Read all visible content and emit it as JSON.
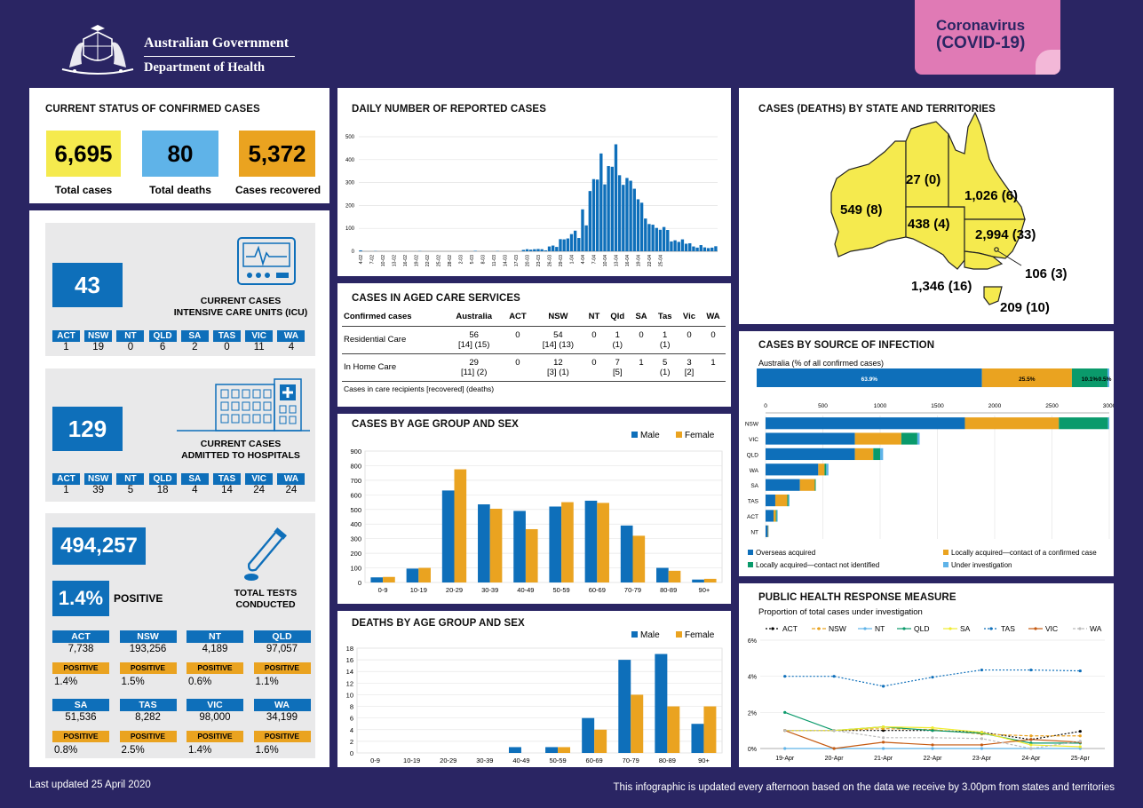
{
  "header": {
    "org_line1": "Australian Government",
    "org_line2": "Department of Health",
    "badge_line1": "Coronavirus",
    "badge_line2": "(COVID-19)"
  },
  "status": {
    "title": "CURRENT STATUS OF CONFIRMED CASES",
    "total_cases": "6,695",
    "total_cases_label": "Total cases",
    "total_deaths": "80",
    "total_deaths_label": "Total deaths",
    "recovered": "5,372",
    "recovered_label": "Cases recovered"
  },
  "icu": {
    "count": "43",
    "label_line1": "CURRENT CASES",
    "label_line2": "INTENSIVE CARE UNITS (ICU)",
    "states": [
      {
        "state": "ACT",
        "value": "1"
      },
      {
        "state": "NSW",
        "value": "19"
      },
      {
        "state": "NT",
        "value": "0"
      },
      {
        "state": "QLD",
        "value": "6"
      },
      {
        "state": "SA",
        "value": "2"
      },
      {
        "state": "TAS",
        "value": "0"
      },
      {
        "state": "VIC",
        "value": "11"
      },
      {
        "state": "WA",
        "value": "4"
      }
    ]
  },
  "hospital": {
    "count": "129",
    "label_line1": "CURRENT CASES",
    "label_line2": "ADMITTED TO HOSPITALS",
    "states": [
      {
        "state": "ACT",
        "value": "1"
      },
      {
        "state": "NSW",
        "value": "39"
      },
      {
        "state": "NT",
        "value": "5"
      },
      {
        "state": "QLD",
        "value": "18"
      },
      {
        "state": "SA",
        "value": "4"
      },
      {
        "state": "TAS",
        "value": "14"
      },
      {
        "state": "VIC",
        "value": "24"
      },
      {
        "state": "WA",
        "value": "24"
      }
    ]
  },
  "tests": {
    "total": "494,257",
    "positive_rate": "1.4%",
    "positive_label": "POSITIVE",
    "label_line1": "TOTAL TESTS",
    "label_line2": "CONDUCTED",
    "positive_chip": "POSITIVE",
    "states": [
      {
        "state": "ACT",
        "tests": "7,738",
        "positive": "1.4%"
      },
      {
        "state": "NSW",
        "tests": "193,256",
        "positive": "1.5%"
      },
      {
        "state": "NT",
        "tests": "4,189",
        "positive": "0.6%"
      },
      {
        "state": "QLD",
        "tests": "97,057",
        "positive": "1.1%"
      },
      {
        "state": "SA",
        "tests": "51,536",
        "positive": "0.8%"
      },
      {
        "state": "TAS",
        "tests": "8,282",
        "positive": "2.5%"
      },
      {
        "state": "VIC",
        "tests": "98,000",
        "positive": "1.4%"
      },
      {
        "state": "WA",
        "tests": "34,199",
        "positive": "1.6%"
      }
    ]
  },
  "aged_care": {
    "title": "CASES IN AGED CARE SERVICES",
    "headers": [
      "Confirmed cases",
      "Australia",
      "ACT",
      "NSW",
      "NT",
      "Qld",
      "SA",
      "Tas",
      "Vic",
      "WA"
    ],
    "rows": [
      {
        "label": "Residential Care",
        "cells": [
          [
            "56",
            "[14] (15)"
          ],
          [
            "0",
            ""
          ],
          [
            "54",
            "[14] (13)"
          ],
          [
            "0",
            ""
          ],
          [
            "1",
            "(1)"
          ],
          [
            "0",
            ""
          ],
          [
            "1",
            "(1)"
          ],
          [
            "0",
            ""
          ],
          [
            "0",
            ""
          ]
        ]
      },
      {
        "label": "In Home Care",
        "cells": [
          [
            "29",
            "[11] (2)"
          ],
          [
            "0",
            ""
          ],
          [
            "12",
            "[3] (1)"
          ],
          [
            "0",
            ""
          ],
          [
            "7",
            "[5]"
          ],
          [
            "1",
            ""
          ],
          [
            "5",
            "(1)"
          ],
          [
            "3",
            "[2]"
          ],
          [
            "1",
            ""
          ]
        ]
      }
    ],
    "note": "Cases in care recipients [recovered] (deaths)"
  },
  "map": {
    "title": "CASES (DEATHS) BY STATE AND TERRITORIES",
    "labels": {
      "WA": "549 (8)",
      "NT": "27 (0)",
      "QLD": "1,026 (6)",
      "SA": "438 (4)",
      "NSW": "2,994 (33)",
      "ACT": "106 (3)",
      "VIC": "1,346 (16)",
      "TAS": "209 (10)"
    },
    "fill": "#f5ea4e"
  },
  "chart_data": [
    {
      "id": "daily",
      "type": "bar",
      "title": "DAILY NUMBER OF REPORTED CASES",
      "ylim": [
        0,
        500
      ],
      "yticks": [
        0,
        100,
        200,
        300,
        400,
        500
      ],
      "color": "#0e6fba",
      "xtick_labels": [
        "4-02",
        "7-02",
        "10-02",
        "13-02",
        "16-02",
        "19-02",
        "22-02",
        "25-02",
        "28-02",
        "2-03",
        "5-03",
        "8-03",
        "11-03",
        "14-03",
        "17-03",
        "20-03",
        "23-03",
        "26-03",
        "29-03",
        "1-04",
        "4-04",
        "7-04",
        "10-04",
        "13-04",
        "16-04",
        "19-04",
        "22-04",
        "25-04"
      ],
      "values": [
        4,
        0,
        0,
        0,
        1,
        0,
        0,
        0,
        0,
        0,
        0,
        0,
        0,
        0,
        0,
        0,
        1,
        0,
        0,
        0,
        0,
        0,
        0,
        0,
        0,
        0,
        0,
        0,
        0,
        0,
        0,
        2,
        0,
        0,
        0,
        0,
        0,
        1,
        0,
        0,
        0,
        0,
        0,
        0,
        6,
        9,
        7,
        9,
        10,
        9,
        4,
        21,
        25,
        19,
        53,
        52,
        56,
        75,
        90,
        58,
        183,
        113,
        263,
        315,
        313,
        427,
        292,
        372,
        369,
        467,
        332,
        290,
        320,
        308,
        273,
        227,
        212,
        143,
        119,
        116,
        102,
        94,
        106,
        93,
        43,
        48,
        41,
        52,
        33,
        35,
        21,
        16,
        27,
        17,
        14,
        16,
        22
      ]
    },
    {
      "id": "age_cases",
      "type": "bar",
      "title": "CASES BY AGE GROUP AND SEX",
      "categories": [
        "0-9",
        "10-19",
        "20-29",
        "30-39",
        "40-49",
        "50-59",
        "60-69",
        "70-79",
        "80-89",
        "90+"
      ],
      "ylim": [
        0,
        900
      ],
      "yticks": [
        0,
        100,
        200,
        300,
        400,
        500,
        600,
        700,
        800,
        900
      ],
      "series": [
        {
          "name": "Male",
          "color": "#0e6fba",
          "values": [
            35,
            95,
            630,
            535,
            490,
            520,
            560,
            390,
            100,
            20
          ]
        },
        {
          "name": "Female",
          "color": "#eaa320",
          "values": [
            38,
            100,
            775,
            505,
            365,
            550,
            545,
            320,
            80,
            25
          ]
        }
      ],
      "legend": "top-right"
    },
    {
      "id": "age_deaths",
      "type": "bar",
      "title": "DEATHS BY AGE GROUP AND SEX",
      "categories": [
        "0-9",
        "10-19",
        "20-29",
        "30-39",
        "40-49",
        "50-59",
        "60-69",
        "70-79",
        "80-89",
        "90+"
      ],
      "ylim": [
        0,
        18
      ],
      "yticks": [
        0,
        2,
        4,
        6,
        8,
        10,
        12,
        14,
        16,
        18
      ],
      "series": [
        {
          "name": "Male",
          "color": "#0e6fba",
          "values": [
            0,
            0,
            0,
            0,
            1,
            1,
            6,
            16,
            17,
            5
          ]
        },
        {
          "name": "Female",
          "color": "#eaa320",
          "values": [
            0,
            0,
            0,
            0,
            0,
            1,
            4,
            10,
            8,
            8
          ]
        }
      ],
      "legend": "top-right"
    },
    {
      "id": "source",
      "type": "bar",
      "title": "CASES BY SOURCE OF INFECTION",
      "subtitle": "Australia (% of all confirmed cases)",
      "australia_shares": [
        {
          "label": "63.9%",
          "value": 63.9,
          "color": "#0e6fba"
        },
        {
          "label": "25.5%",
          "value": 25.5,
          "color": "#eaa320"
        },
        {
          "label": "10.1%",
          "value": 10.1,
          "color": "#0a9a6b"
        },
        {
          "label": "0.5%",
          "value": 0.5,
          "color": "#5fb3e8"
        }
      ],
      "xlim": [
        0,
        3000
      ],
      "xticks": [
        0,
        500,
        1000,
        1500,
        2000,
        2500,
        3000
      ],
      "categories": [
        "NSW",
        "VIC",
        "QLD",
        "WA",
        "SA",
        "TAS",
        "ACT",
        "NT"
      ],
      "series": [
        {
          "name": "Overseas acquired",
          "color": "#0e6fba",
          "values": [
            1740,
            780,
            780,
            460,
            300,
            85,
            70,
            20
          ]
        },
        {
          "name": "Locally acquired—contact of a confirmed case",
          "color": "#eaa320",
          "values": [
            820,
            405,
            160,
            55,
            130,
            105,
            20,
            5
          ]
        },
        {
          "name": "Locally acquired—contact not identified",
          "color": "#0a9a6b",
          "values": [
            430,
            140,
            60,
            15,
            8,
            10,
            8,
            1
          ]
        },
        {
          "name": "Under investigation",
          "color": "#5fb3e8",
          "values": [
            10,
            20,
            26,
            19,
            0,
            9,
            8,
            1
          ]
        }
      ]
    },
    {
      "id": "phrm",
      "type": "line",
      "title": "PUBLIC HEALTH RESPONSE MEASURE",
      "subtitle": "Proportion of total cases under investigation",
      "x": [
        "19-Apr",
        "20-Apr",
        "21-Apr",
        "22-Apr",
        "23-Apr",
        "24-Apr",
        "25-Apr"
      ],
      "ylim": [
        0,
        6
      ],
      "yticks": [
        "0%",
        "2%",
        "4%",
        "6%"
      ],
      "series": [
        {
          "name": "ACT",
          "color": "#000000",
          "dash": "2,2",
          "values": [
            1.0,
            1.0,
            1.0,
            1.0,
            0.9,
            0.5,
            0.95
          ]
        },
        {
          "name": "NSW",
          "color": "#eaa320",
          "dash": "4,2",
          "values": [
            1.0,
            1.0,
            1.1,
            1.05,
            0.8,
            0.7,
            0.7
          ]
        },
        {
          "name": "NT",
          "color": "#5fb3e8",
          "dash": "",
          "values": [
            0,
            0,
            0,
            0,
            0,
            0,
            0
          ]
        },
        {
          "name": "QLD",
          "color": "#0a9a6b",
          "dash": "",
          "values": [
            2.0,
            1.0,
            1.2,
            1.0,
            0.85,
            0.3,
            0.3
          ]
        },
        {
          "name": "SA",
          "color": "#f0ec2e",
          "dash": "",
          "values": [
            1.0,
            1.0,
            1.2,
            1.15,
            0.9,
            0.2,
            0.1
          ]
        },
        {
          "name": "TAS",
          "color": "#0e6fba",
          "dash": "2,2",
          "values": [
            4.0,
            4.0,
            3.45,
            3.95,
            4.35,
            4.35,
            4.3
          ]
        },
        {
          "name": "VIC",
          "color": "#c55a11",
          "dash": "",
          "values": [
            1.0,
            0.0,
            0.35,
            0.2,
            0.2,
            0.5,
            0.35
          ]
        },
        {
          "name": "WA",
          "color": "#bbbbbb",
          "dash": "3,2",
          "values": [
            1.0,
            1.0,
            0.6,
            0.6,
            0.55,
            0.0,
            0.4
          ]
        }
      ]
    }
  ],
  "footer": {
    "left": "Last updated 25 April 2020",
    "right": "This infographic is updated every afternoon based on the data we receive by 3.00pm from states and territories"
  }
}
